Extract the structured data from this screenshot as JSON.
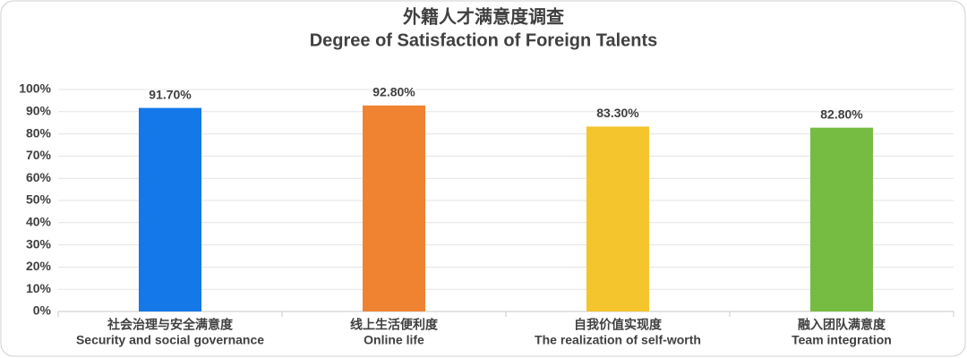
{
  "chart_data": {
    "type": "bar",
    "title": "外籍人才满意度调查",
    "subtitle": "Degree of Satisfaction of Foreign Talents",
    "categories": [
      [
        "社会治理与安全满意度",
        "Security and social governance"
      ],
      [
        "线上生活便利度",
        "Online life"
      ],
      [
        "自我价值实现度",
        "The realization of self-worth"
      ],
      [
        "融入团队满意度",
        "Team integration"
      ]
    ],
    "values": [
      91.7,
      92.8,
      83.3,
      82.8
    ],
    "value_labels": [
      "91.70%",
      "92.80%",
      "83.30%",
      "82.80%"
    ],
    "colors": [
      "#1478e8",
      "#ef8332",
      "#f4c52c",
      "#76bc43"
    ],
    "ylim": [
      0,
      100
    ],
    "yticks": [
      {
        "value": 0,
        "label": "0%"
      },
      {
        "value": 10,
        "label": "10%"
      },
      {
        "value": 20,
        "label": "20%"
      },
      {
        "value": 30,
        "label": "30%"
      },
      {
        "value": 40,
        "label": "40%"
      },
      {
        "value": 50,
        "label": "50%"
      },
      {
        "value": 60,
        "label": "60%"
      },
      {
        "value": 70,
        "label": "70%"
      },
      {
        "value": 80,
        "label": "80%"
      },
      {
        "value": 90,
        "label": "90%"
      },
      {
        "value": 100,
        "label": "100%"
      }
    ],
    "grid": true
  }
}
